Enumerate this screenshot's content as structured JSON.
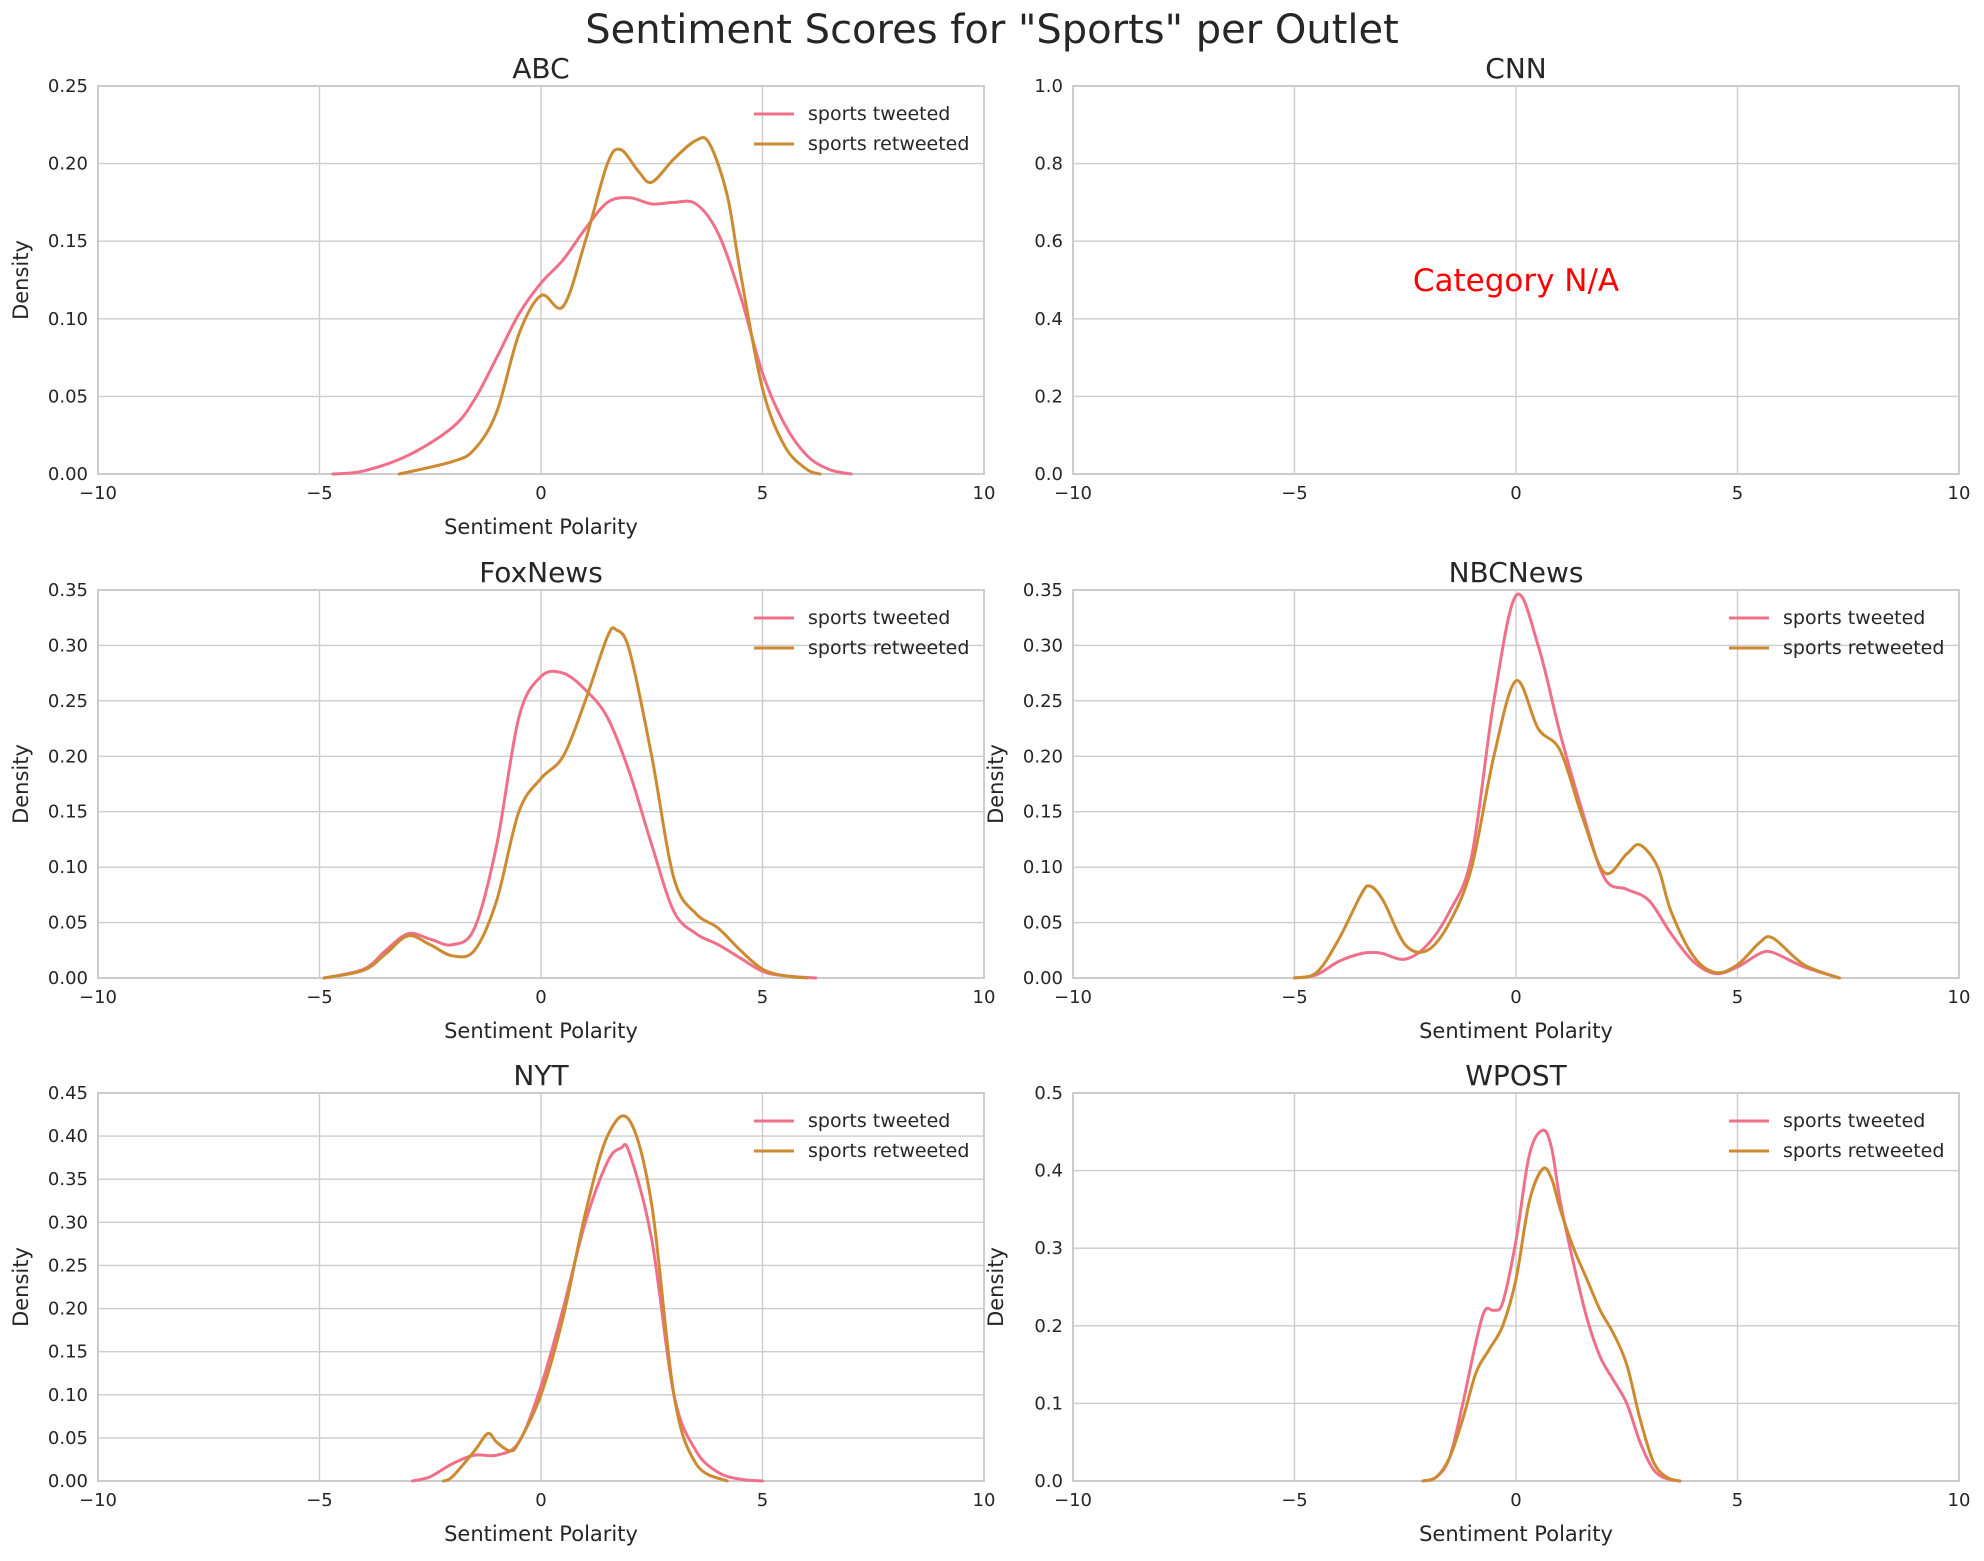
{
  "figure": {
    "title": "Sentiment Scores for \"Sports\" per Outlet"
  },
  "colors": {
    "tweeted": "#f0708a",
    "retweeted": "#cc8b30",
    "na_text": "#ff0000",
    "grid": "#cccccc"
  },
  "chart_data": [
    {
      "type": "line",
      "title": "ABC",
      "xlabel": "Sentiment Polarity",
      "ylabel": "Density",
      "xlim": [
        -10,
        10
      ],
      "ylim": [
        0,
        0.25
      ],
      "xticks": [
        -10,
        -5,
        0,
        5,
        10
      ],
      "xtick_labels": [
        "−10",
        "−5",
        "0",
        "5",
        "10"
      ],
      "yticks": [
        0,
        0.05,
        0.1,
        0.15,
        0.2,
        0.25
      ],
      "ytick_labels": [
        "0.00",
        "0.05",
        "0.10",
        "0.15",
        "0.20",
        "0.25"
      ],
      "grid": true,
      "legend": "top-right",
      "series": [
        {
          "name": "sports tweeted",
          "x": [
            -4.7,
            -4,
            -3,
            -2,
            -1.5,
            -1,
            -0.5,
            0,
            0.5,
            1,
            1.5,
            2,
            2.5,
            3,
            3.5,
            4,
            4.5,
            5,
            5.5,
            6,
            6.5,
            7
          ],
          "y": [
            0,
            0.002,
            0.012,
            0.03,
            0.048,
            0.075,
            0.103,
            0.123,
            0.138,
            0.158,
            0.175,
            0.178,
            0.174,
            0.175,
            0.174,
            0.155,
            0.115,
            0.065,
            0.032,
            0.012,
            0.003,
            0
          ]
        },
        {
          "name": "sports retweeted",
          "x": [
            -3.2,
            -2,
            -1.5,
            -1,
            -0.5,
            0,
            0.5,
            1,
            1.5,
            1.8,
            2.2,
            2.5,
            3,
            3.5,
            3.8,
            4.2,
            4.5,
            5,
            5.5,
            6,
            6.3
          ],
          "y": [
            0,
            0.008,
            0.016,
            0.04,
            0.09,
            0.115,
            0.108,
            0.15,
            0.2,
            0.209,
            0.195,
            0.188,
            0.203,
            0.215,
            0.213,
            0.18,
            0.13,
            0.055,
            0.018,
            0.003,
            0
          ]
        }
      ]
    },
    {
      "type": "line",
      "title": "CNN",
      "xlabel": "",
      "ylabel": "",
      "xlim": [
        -10,
        10
      ],
      "ylim": [
        0,
        1
      ],
      "xticks": [
        -10,
        -5,
        0,
        5,
        10
      ],
      "xtick_labels": [
        "−10",
        "−5",
        "0",
        "5",
        "10"
      ],
      "yticks": [
        0,
        0.2,
        0.4,
        0.6,
        0.8,
        1.0
      ],
      "ytick_labels": [
        "0.0",
        "0.2",
        "0.4",
        "0.6",
        "0.8",
        "1.0"
      ],
      "grid": true,
      "annotation": "Category N/A",
      "series": []
    },
    {
      "type": "line",
      "title": "FoxNews",
      "xlabel": "Sentiment Polarity",
      "ylabel": "Density",
      "xlim": [
        -10,
        10
      ],
      "ylim": [
        0,
        0.35
      ],
      "xticks": [
        -10,
        -5,
        0,
        5,
        10
      ],
      "xtick_labels": [
        "−10",
        "−5",
        "0",
        "5",
        "10"
      ],
      "yticks": [
        0,
        0.05,
        0.1,
        0.15,
        0.2,
        0.25,
        0.3,
        0.35
      ],
      "ytick_labels": [
        "0.00",
        "0.05",
        "0.10",
        "0.15",
        "0.20",
        "0.25",
        "0.30",
        "0.35"
      ],
      "grid": true,
      "legend": "top-right",
      "series": [
        {
          "name": "sports tweeted",
          "x": [
            -4.9,
            -4,
            -3.5,
            -3,
            -2.5,
            -2,
            -1.5,
            -1,
            -0.5,
            0,
            0.5,
            1,
            1.5,
            2,
            2.5,
            3,
            3.5,
            4,
            4.5,
            5,
            5.5,
            6.2
          ],
          "y": [
            0,
            0.008,
            0.025,
            0.04,
            0.035,
            0.03,
            0.045,
            0.12,
            0.235,
            0.272,
            0.275,
            0.26,
            0.235,
            0.185,
            0.12,
            0.06,
            0.04,
            0.03,
            0.018,
            0.006,
            0.002,
            0
          ]
        },
        {
          "name": "sports retweeted",
          "x": [
            -4.9,
            -4,
            -3.5,
            -3,
            -2.5,
            -2,
            -1.5,
            -1,
            -0.5,
            0,
            0.5,
            1,
            1.5,
            1.7,
            2,
            2.5,
            3,
            3.5,
            4,
            4.5,
            5,
            5.5,
            6
          ],
          "y": [
            0,
            0.007,
            0.022,
            0.038,
            0.03,
            0.02,
            0.025,
            0.07,
            0.15,
            0.18,
            0.2,
            0.25,
            0.308,
            0.314,
            0.295,
            0.2,
            0.09,
            0.058,
            0.045,
            0.025,
            0.008,
            0.002,
            0
          ]
        }
      ]
    },
    {
      "type": "line",
      "title": "NBCNews",
      "xlabel": "Sentiment Polarity",
      "ylabel": "Density",
      "xlim": [
        -10,
        10
      ],
      "ylim": [
        0,
        0.35
      ],
      "xticks": [
        -10,
        -5,
        0,
        5,
        10
      ],
      "xtick_labels": [
        "−10",
        "−5",
        "0",
        "5",
        "10"
      ],
      "yticks": [
        0,
        0.05,
        0.1,
        0.15,
        0.2,
        0.25,
        0.3,
        0.35
      ],
      "ytick_labels": [
        "0.00",
        "0.05",
        "0.10",
        "0.15",
        "0.20",
        "0.25",
        "0.30",
        "0.35"
      ],
      "grid": true,
      "legend": "top-right",
      "series": [
        {
          "name": "sports tweeted",
          "x": [
            -5,
            -4.5,
            -4,
            -3.5,
            -3.2,
            -3,
            -2.5,
            -2,
            -1.5,
            -1,
            -0.5,
            0,
            0.5,
            1,
            1.5,
            2,
            2.5,
            3,
            3.5,
            4,
            4.5,
            5,
            5.5,
            5.8,
            6.5,
            7.3
          ],
          "y": [
            0,
            0.003,
            0.015,
            0.022,
            0.023,
            0.022,
            0.017,
            0.03,
            0.06,
            0.11,
            0.25,
            0.345,
            0.3,
            0.22,
            0.15,
            0.09,
            0.08,
            0.07,
            0.04,
            0.015,
            0.004,
            0.01,
            0.022,
            0.023,
            0.01,
            0
          ]
        },
        {
          "name": "sports retweeted",
          "x": [
            -5,
            -4.5,
            -4,
            -3.5,
            -3.3,
            -3,
            -2.5,
            -2,
            -1.5,
            -1,
            -0.5,
            0,
            0.5,
            1,
            1.5,
            2,
            2.5,
            2.8,
            3.2,
            3.5,
            4,
            4.5,
            5,
            5.5,
            5.8,
            6.5,
            7.3
          ],
          "y": [
            0,
            0.005,
            0.035,
            0.075,
            0.083,
            0.07,
            0.03,
            0.025,
            0.05,
            0.1,
            0.2,
            0.268,
            0.225,
            0.205,
            0.145,
            0.095,
            0.112,
            0.12,
            0.1,
            0.06,
            0.02,
            0.005,
            0.012,
            0.032,
            0.036,
            0.012,
            0
          ]
        }
      ]
    },
    {
      "type": "line",
      "title": "NYT",
      "xlabel": "Sentiment Polarity",
      "ylabel": "Density",
      "xlim": [
        -10,
        10
      ],
      "ylim": [
        0,
        0.45
      ],
      "xticks": [
        -10,
        -5,
        0,
        5,
        10
      ],
      "xtick_labels": [
        "−10",
        "−5",
        "0",
        "5",
        "10"
      ],
      "yticks": [
        0,
        0.05,
        0.1,
        0.15,
        0.2,
        0.25,
        0.3,
        0.35,
        0.4,
        0.45
      ],
      "ytick_labels": [
        "0.00",
        "0.05",
        "0.10",
        "0.15",
        "0.20",
        "0.25",
        "0.30",
        "0.35",
        "0.40",
        "0.45"
      ],
      "grid": true,
      "legend": "top-right",
      "series": [
        {
          "name": "sports tweeted",
          "x": [
            -2.9,
            -2.5,
            -2,
            -1.5,
            -1,
            -0.5,
            0,
            0.5,
            1,
            1.5,
            1.8,
            2,
            2.5,
            3,
            3.5,
            4,
            4.5,
            5
          ],
          "y": [
            0,
            0.005,
            0.02,
            0.03,
            0.03,
            0.045,
            0.11,
            0.2,
            0.3,
            0.37,
            0.386,
            0.38,
            0.28,
            0.1,
            0.035,
            0.01,
            0.002,
            0
          ]
        },
        {
          "name": "sports retweeted",
          "x": [
            -2.2,
            -2,
            -1.5,
            -1.2,
            -1,
            -0.7,
            -0.5,
            0,
            0.5,
            1,
            1.5,
            2,
            2.5,
            3,
            3.5,
            4.2
          ],
          "y": [
            0,
            0.005,
            0.035,
            0.055,
            0.045,
            0.035,
            0.045,
            0.1,
            0.19,
            0.31,
            0.4,
            0.418,
            0.32,
            0.1,
            0.02,
            0
          ]
        }
      ]
    },
    {
      "type": "line",
      "title": "WPOST",
      "xlabel": "Sentiment Polarity",
      "ylabel": "Density",
      "xlim": [
        -10,
        10
      ],
      "ylim": [
        0,
        0.5
      ],
      "xticks": [
        -10,
        -5,
        0,
        5,
        10
      ],
      "xtick_labels": [
        "−10",
        "−5",
        "0",
        "5",
        "10"
      ],
      "yticks": [
        0,
        0.1,
        0.2,
        0.3,
        0.4,
        0.5
      ],
      "ytick_labels": [
        "0.0",
        "0.1",
        "0.2",
        "0.3",
        "0.4",
        "0.5"
      ],
      "grid": true,
      "legend": "top-right",
      "series": [
        {
          "name": "sports tweeted",
          "x": [
            -2.1,
            -1.8,
            -1.5,
            -1.2,
            -0.9,
            -0.7,
            -0.5,
            -0.3,
            0,
            0.3,
            0.6,
            0.8,
            1,
            1.3,
            1.6,
            1.9,
            2.2,
            2.5,
            2.8,
            3.1,
            3.4,
            3.7
          ],
          "y": [
            0,
            0.005,
            0.03,
            0.1,
            0.18,
            0.22,
            0.22,
            0.23,
            0.31,
            0.42,
            0.452,
            0.43,
            0.36,
            0.28,
            0.21,
            0.16,
            0.13,
            0.1,
            0.05,
            0.015,
            0.003,
            0
          ]
        },
        {
          "name": "sports retweeted",
          "x": [
            -2.1,
            -1.8,
            -1.5,
            -1.2,
            -0.9,
            -0.6,
            -0.3,
            0,
            0.3,
            0.6,
            0.8,
            1,
            1.3,
            1.6,
            1.9,
            2.2,
            2.5,
            2.8,
            3.1,
            3.4,
            3.7
          ],
          "y": [
            0,
            0.005,
            0.03,
            0.08,
            0.14,
            0.17,
            0.2,
            0.26,
            0.36,
            0.402,
            0.39,
            0.35,
            0.3,
            0.26,
            0.22,
            0.19,
            0.15,
            0.08,
            0.025,
            0.005,
            0
          ]
        }
      ]
    }
  ]
}
